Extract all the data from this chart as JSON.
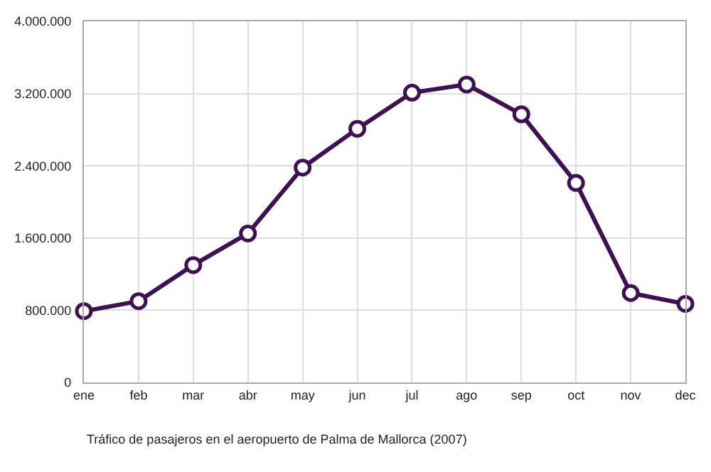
{
  "chart_data": {
    "type": "line",
    "categories": [
      "ene",
      "feb",
      "mar",
      "abr",
      "may",
      "jun",
      "jul",
      "ago",
      "sep",
      "oct",
      "nov",
      "dec"
    ],
    "series": [
      {
        "color": "#3d1152",
        "values": [
          790000,
          900000,
          1300000,
          1650000,
          2380000,
          2810000,
          3210000,
          3300000,
          2970000,
          2210000,
          990000,
          870000
        ]
      }
    ],
    "ylim": [
      0,
      4000000
    ],
    "yticks": [
      {
        "value": 0,
        "label": "0"
      },
      {
        "value": 800000,
        "label": "800.000"
      },
      {
        "value": 1600000,
        "label": "1.600.000"
      },
      {
        "value": 2400000,
        "label": "2.400.000"
      },
      {
        "value": 3200000,
        "label": "3.200.000"
      },
      {
        "value": 4000000,
        "label": "4.000.000"
      }
    ],
    "annotations": [
      "Tráfico de pasajeros en el aeropuerto de Palma de Mallorca (2007)"
    ],
    "grid": true,
    "marker": "circle",
    "line_style": "solid",
    "legend": false
  }
}
